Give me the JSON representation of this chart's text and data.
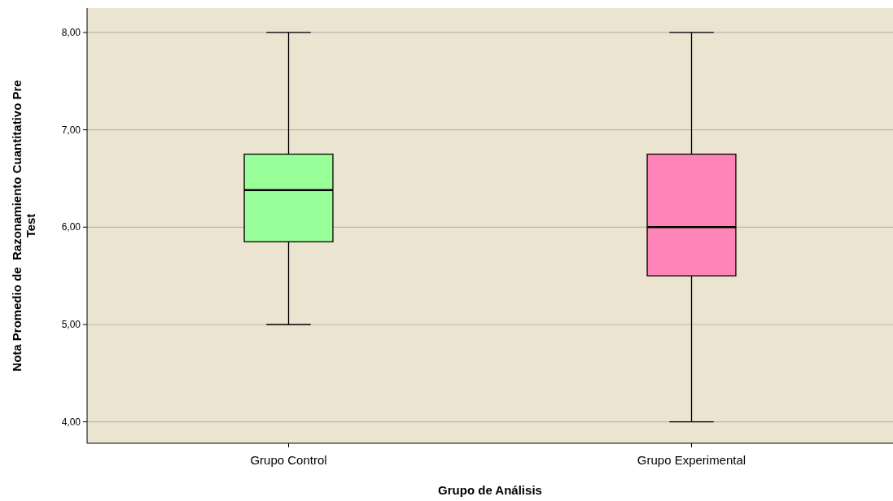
{
  "chart_data": {
    "type": "box",
    "xlabel": "Grupo de Análisis",
    "ylabel": "Nota Promedio de  Razonamiento Cuantitativo Pre Test",
    "categories": [
      "Grupo Control",
      "Grupo Experimental"
    ],
    "colors": [
      "#99ff99",
      "#ff84b7"
    ],
    "boxes": [
      {
        "low": 5,
        "q1": 5.85,
        "median": 6.38,
        "q3": 6.75,
        "high": 8
      },
      {
        "low": 4,
        "q1": 5.5,
        "median": 6,
        "q3": 6.75,
        "high": 8
      }
    ],
    "ylim": [
      3.78,
      8.25
    ],
    "yticks": [
      {
        "value": 4,
        "label": "4,00"
      },
      {
        "value": 5,
        "label": "5,00"
      },
      {
        "value": 6,
        "label": "6,00"
      },
      {
        "value": 7,
        "label": "7,00"
      },
      {
        "value": 8,
        "label": "8,00"
      }
    ],
    "grid": "y"
  }
}
